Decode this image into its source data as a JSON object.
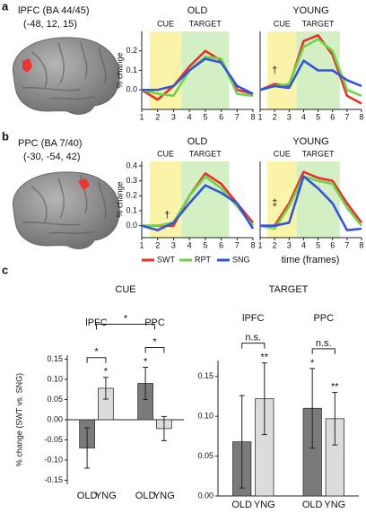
{
  "panel_labels": [
    "a",
    "b",
    "c"
  ],
  "regions": [
    {
      "name": "lPFC (BA 44/45)",
      "coords": "(-48, 12, 15)"
    },
    {
      "name": "PPC (BA 7/40)",
      "coords": "(-30, -54, 42)"
    }
  ],
  "chart_data": [
    {
      "type": "line",
      "title": "OLD",
      "ylabel": "% change",
      "x": [
        1,
        2,
        3,
        4,
        5,
        6,
        7,
        8
      ],
      "xlim": [
        1,
        8
      ],
      "xticks": [
        1,
        2,
        3,
        4,
        5,
        6,
        7,
        8
      ],
      "ylim": [
        -0.1,
        0.3
      ],
      "yticks": [
        {
          "value": 0,
          "label": "0.0"
        },
        0.1,
        0.2
      ],
      "spans": [
        {
          "label": "CUE",
          "from": 1.5,
          "to": 3.5,
          "color": "#fbf4a8"
        },
        {
          "label": "TARGET",
          "from": 3.5,
          "to": 6.5,
          "color": "#d3efc3"
        }
      ],
      "series": [
        {
          "name": "SWT",
          "color": "#e8302a",
          "values": [
            0,
            -0.05,
            0.02,
            0.12,
            0.2,
            0.15,
            0,
            -0.02
          ]
        },
        {
          "name": "RPT",
          "color": "#6fd34a",
          "values": [
            0,
            -0.02,
            -0.03,
            0.1,
            0.17,
            0.16,
            -0.02,
            -0.03
          ]
        },
        {
          "name": "SNG",
          "color": "#3355dd",
          "values": [
            0,
            0,
            0.02,
            0.1,
            0.16,
            0.14,
            0.02,
            -0.02
          ]
        }
      ]
    },
    {
      "type": "line",
      "title": "YOUNG",
      "x": [
        1,
        2,
        3,
        4,
        5,
        6,
        7,
        8
      ],
      "xlim": [
        1,
        8
      ],
      "xticks": [
        1,
        2,
        3,
        4,
        5,
        6,
        7,
        8
      ],
      "ylim": [
        -0.1,
        0.3
      ],
      "spans": [
        {
          "label": "CUE",
          "from": 1.5,
          "to": 3.5,
          "color": "#fbf4a8"
        },
        {
          "label": "TARGET",
          "from": 3.5,
          "to": 6.5,
          "color": "#d3efc3"
        }
      ],
      "annotation": {
        "text": "†",
        "x": 2,
        "y": 0.1
      },
      "series": [
        {
          "name": "SWT",
          "color": "#e8302a",
          "values": [
            0,
            0.03,
            0.02,
            0.25,
            0.28,
            0.18,
            -0.03,
            -0.07
          ]
        },
        {
          "name": "RPT",
          "color": "#6fd34a",
          "values": [
            0,
            0.02,
            0.03,
            0.22,
            0.26,
            0.2,
            0,
            -0.03
          ]
        },
        {
          "name": "SNG",
          "color": "#3355dd",
          "values": [
            0,
            0.02,
            0.01,
            0.15,
            0.1,
            0.1,
            0.05,
            0.02
          ]
        }
      ]
    },
    {
      "type": "line",
      "title": "OLD",
      "ylabel": "% change",
      "x": [
        1,
        2,
        3,
        4,
        5,
        6,
        7,
        8
      ],
      "xlim": [
        1,
        8
      ],
      "xticks": [
        1,
        2,
        3,
        4,
        5,
        6,
        7,
        8
      ],
      "ylim": [
        -0.08,
        0.43
      ],
      "yticks": [
        {
          "value": 0,
          "label": "0.0"
        },
        0.1,
        0.2,
        0.3,
        0.4
      ],
      "spans": [
        {
          "label": "CUE",
          "from": 1.5,
          "to": 3.5,
          "color": "#fbf4a8"
        },
        {
          "label": "TARGET",
          "from": 3.5,
          "to": 6.5,
          "color": "#d3efc3"
        }
      ],
      "annotation": {
        "text": "†",
        "x": 2.6,
        "y": 0.07
      },
      "series": [
        {
          "name": "SWT",
          "color": "#e8302a",
          "values": [
            0,
            0,
            0,
            0.2,
            0.35,
            0.28,
            0.15,
            0.02
          ]
        },
        {
          "name": "RPT",
          "color": "#6fd34a",
          "values": [
            0,
            0,
            0.02,
            0.2,
            0.33,
            0.25,
            0.13,
            0
          ]
        },
        {
          "name": "SNG",
          "color": "#3355dd",
          "values": [
            0,
            -0.03,
            0.02,
            0.15,
            0.27,
            0.22,
            0.15,
            -0.02
          ]
        }
      ]
    },
    {
      "type": "line",
      "title": "YOUNG",
      "xlabel": "time (frames)",
      "x": [
        1,
        2,
        3,
        4,
        5,
        6,
        7,
        8
      ],
      "xlim": [
        1,
        8
      ],
      "xticks": [
        1,
        2,
        3,
        4,
        5,
        6,
        7,
        8
      ],
      "ylim": [
        -0.08,
        0.43
      ],
      "spans": [
        {
          "label": "CUE",
          "from": 1.5,
          "to": 3.5,
          "color": "#fbf4a8"
        },
        {
          "label": "TARGET",
          "from": 3.5,
          "to": 6.5,
          "color": "#d3efc3"
        }
      ],
      "annotation": {
        "text": "‡",
        "x": 2,
        "y": 0.15
      },
      "series": [
        {
          "name": "SWT",
          "color": "#e8302a",
          "values": [
            0,
            0,
            0.15,
            0.36,
            0.32,
            0.3,
            0.15,
            0.02
          ]
        },
        {
          "name": "RPT",
          "color": "#6fd34a",
          "values": [
            0,
            -0.02,
            0.13,
            0.33,
            0.3,
            0.28,
            0.12,
            0
          ]
        },
        {
          "name": "SNG",
          "color": "#3355dd",
          "values": [
            0,
            0,
            0.02,
            0.33,
            0.25,
            0.15,
            -0.03,
            -0.02
          ]
        }
      ]
    },
    {
      "type": "bar",
      "title": "CUE",
      "ylabel": "% change (SWT vs. SNG)",
      "categories": [
        "OLD",
        "YNG",
        "OLD",
        "YNG"
      ],
      "groups": [
        {
          "name": "lPFC",
          "members": [
            0,
            1
          ]
        },
        {
          "name": "PPC",
          "members": [
            2,
            3
          ]
        }
      ],
      "values": [
        -0.07,
        0.078,
        0.09,
        -0.022
      ],
      "errors": [
        0.05,
        0.027,
        0.04,
        0.03
      ],
      "colors": [
        "#7a7a7a",
        "#dcdcdc",
        "#7a7a7a",
        "#dcdcdc"
      ],
      "stars": [
        null,
        "*",
        "*",
        null
      ],
      "comparisons": [
        {
          "between": [
            [
              0
            ],
            [
              1
            ]
          ],
          "label": "*"
        },
        {
          "between": [
            [
              2
            ],
            [
              3
            ]
          ],
          "label": "*"
        },
        {
          "between": [
            [
              0,
              1
            ],
            [
              2,
              3
            ]
          ],
          "label": "*"
        }
      ],
      "ylim": [
        -0.16,
        0.16
      ],
      "yticks": [
        -0.15,
        {
          "value": -0.1,
          "label": "-0.10"
        },
        -0.05,
        {
          "value": 0,
          "label": "0.00"
        },
        0.05,
        {
          "value": 0.1,
          "label": "0.10"
        },
        0.15
      ]
    },
    {
      "type": "bar",
      "title": "TARGET",
      "categories": [
        "OLD",
        "YNG",
        "OLD",
        "YNG"
      ],
      "groups": [
        {
          "name": "lPFC",
          "members": [
            0,
            1
          ]
        },
        {
          "name": "PPC",
          "members": [
            2,
            3
          ]
        }
      ],
      "values": [
        0.068,
        0.122,
        0.11,
        0.097
      ],
      "errors": [
        0.058,
        0.045,
        0.05,
        0.033
      ],
      "colors": [
        "#7a7a7a",
        "#dcdcdc",
        "#7a7a7a",
        "#dcdcdc"
      ],
      "stars": [
        null,
        "**",
        "*",
        "**"
      ],
      "comparisons": [
        {
          "between": [
            [
              0
            ],
            [
              1
            ]
          ],
          "label": "n.s."
        },
        {
          "between": [
            [
              2
            ],
            [
              3
            ]
          ],
          "label": "n.s."
        }
      ],
      "ylim": [
        0,
        0.17
      ],
      "yticks": [
        {
          "value": 0,
          "label": "0.00"
        },
        0.05,
        {
          "value": 0.1,
          "label": "0.10"
        },
        0.15
      ]
    }
  ]
}
